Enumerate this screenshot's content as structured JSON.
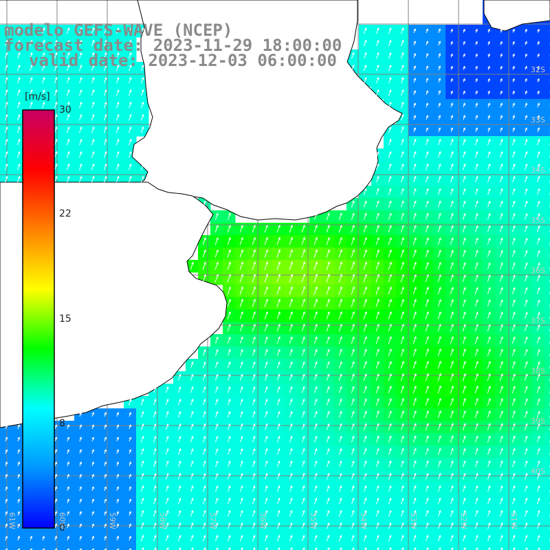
{
  "title": {
    "line1": "modelo GEFS-WAVE (NCEP)",
    "line2": "forecast date: 2023-11-29 18:00:00",
    "line3": "valid date: 2023-12-03 06:00:00"
  },
  "colorbar": {
    "unit": "[m/s]",
    "ticks": [
      "30",
      "22",
      "15",
      "8",
      "0"
    ],
    "tick_values": [
      30,
      22,
      15,
      8,
      0
    ],
    "min": 0,
    "max": 30,
    "colors": [
      "#0000ff",
      "#0096ff",
      "#00ffff",
      "#00ff00",
      "#ffff00",
      "#ff8000",
      "#ff0000",
      "#c80064"
    ]
  },
  "lat_labels": [
    "32S",
    "33S",
    "34S",
    "35S",
    "36S",
    "37S",
    "38S",
    "39S",
    "40S"
  ],
  "lon_labels": [
    "61W",
    "60W",
    "59W",
    "58W",
    "57W",
    "56W",
    "55W",
    "54W",
    "53W",
    "52W",
    "51W"
  ],
  "map_colors": {
    "land": "#ffffff",
    "coast": "#000000",
    "grid": "#808080",
    "arrow": "#ffffff"
  }
}
